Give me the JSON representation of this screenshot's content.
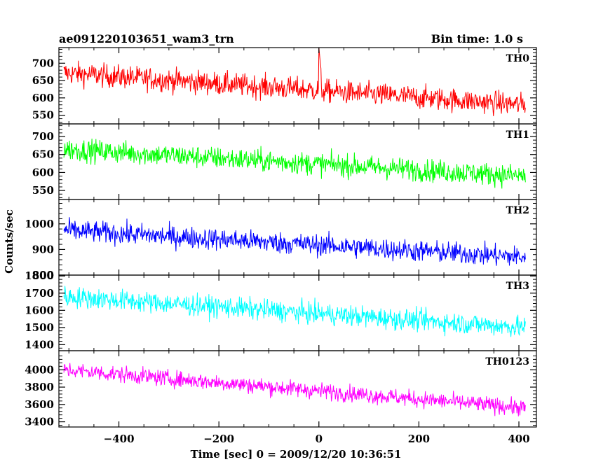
{
  "chart_data": {
    "type": "line",
    "title": "ae091220103651_wam3_trn",
    "subtitle": "Bin time: 1.0 s",
    "xlabel": "Time [sec] 0 = 2009/12/20 10:36:51",
    "ylabel": "Counts/sec",
    "xlim": [
      -520,
      435
    ],
    "x_ticks": [
      -400,
      -200,
      0,
      200,
      400
    ],
    "x_tick_labels": [
      "−400",
      "−200",
      "0",
      "200",
      "400"
    ],
    "data_x_range": [
      -510,
      413
    ],
    "grid": false,
    "legend": "none",
    "panels": [
      {
        "name": "TH0",
        "color": "#ff0000",
        "ylim": [
          525,
          745
        ],
        "y_ticks": [
          550,
          600,
          650,
          700
        ],
        "y_tick_labels": [
          "550",
          "600",
          "650",
          "700"
        ],
        "trend_start": 672,
        "trend_end": 580,
        "noise": 30,
        "spike_time": 0,
        "spike_value": 745
      },
      {
        "name": "TH1",
        "color": "#00ff00",
        "ylim": [
          525,
          735
        ],
        "y_ticks": [
          550,
          600,
          650,
          700
        ],
        "y_tick_labels": [
          "550",
          "600",
          "650",
          "700"
        ],
        "trend_start": 665,
        "trend_end": 590,
        "noise": 28
      },
      {
        "name": "TH2",
        "color": "#0000ff",
        "ylim": [
          800,
          1095
        ],
        "y_ticks": [
          800,
          900,
          1000
        ],
        "y_tick_labels": [
          "800",
          "900",
          "1000"
        ],
        "trend_start": 975,
        "trend_end": 870,
        "noise": 38
      },
      {
        "name": "TH3",
        "color": "#00ffff",
        "ylim": [
          1365,
          1805
        ],
        "y_ticks": [
          1400,
          1500,
          1600,
          1700,
          1800
        ],
        "y_tick_labels": [
          "1400",
          "1500",
          "1600",
          "1700",
          "1800"
        ],
        "trend_start": 1680,
        "trend_end": 1500,
        "noise": 55
      },
      {
        "name": "TH0123",
        "color": "#ff00ff",
        "ylim": [
          3340,
          4220
        ],
        "y_ticks": [
          3400,
          3600,
          3800,
          4000
        ],
        "y_tick_labels": [
          "3400",
          "3600",
          "3800",
          "4000"
        ],
        "trend_start": 4000,
        "trend_end": 3560,
        "noise": 85
      }
    ]
  }
}
